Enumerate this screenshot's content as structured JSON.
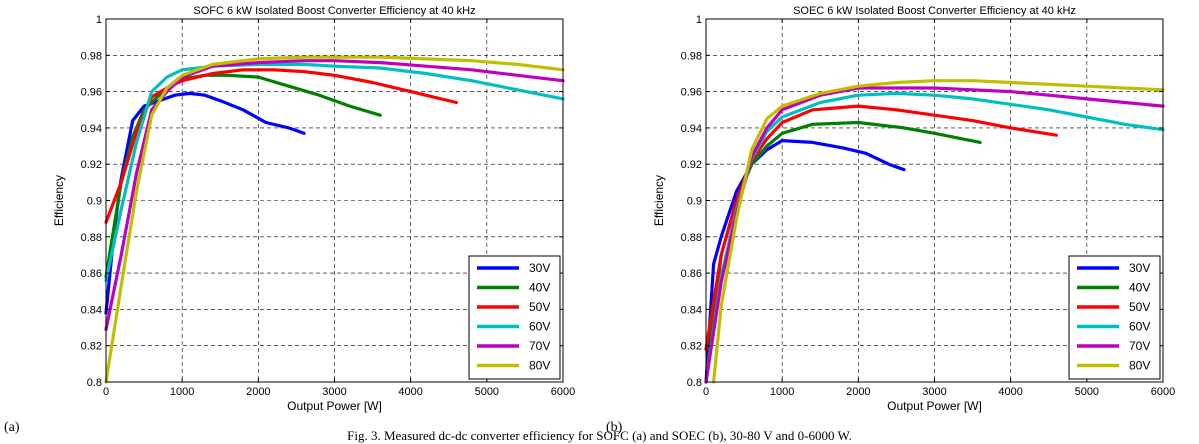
{
  "panel_labels": [
    "(a)",
    "(b)"
  ],
  "caption": "Fig. 3.    Measured dc-dc converter efficiency for SOFC (a) and SOEC (b), 30-80 V and 0-6000 W.",
  "chart_data": [
    {
      "type": "line",
      "title": "SOFC 6 kW Isolated Boost Converter Efficiency at 40 kHz",
      "xlabel": "Output Power [W]",
      "ylabel": "Efficiency",
      "xlim": [
        0,
        6000
      ],
      "ylim": [
        0.8,
        1.0
      ],
      "xticks": [
        0,
        1000,
        2000,
        3000,
        4000,
        5000,
        6000
      ],
      "yticks": [
        0.8,
        0.82,
        0.84,
        0.86,
        0.88,
        0.9,
        0.92,
        0.94,
        0.96,
        0.98,
        1
      ],
      "xtick_labels": [
        "0",
        "1000",
        "2000",
        "3000",
        "4000",
        "5000",
        "6000"
      ],
      "ytick_labels": [
        "0.8",
        "0.82",
        "0.84",
        "0.86",
        "0.88",
        "0.9",
        "0.92",
        "0.94",
        "0.96",
        "0.98",
        "1"
      ],
      "grid": true,
      "legend_position": "bottom-right",
      "series": [
        {
          "name": "30V",
          "color": "#0000ff",
          "x": [
            0,
            100,
            200,
            350,
            500,
            700,
            900,
            1100,
            1300,
            1500,
            1800,
            2100,
            2400,
            2600
          ],
          "y": [
            0.838,
            0.88,
            0.912,
            0.944,
            0.952,
            0.955,
            0.958,
            0.959,
            0.958,
            0.955,
            0.95,
            0.943,
            0.94,
            0.937
          ]
        },
        {
          "name": "40V",
          "color": "#008000",
          "x": [
            0,
            100,
            200,
            350,
            500,
            700,
            1000,
            1300,
            1600,
            2000,
            2400,
            2800,
            3200,
            3600
          ],
          "y": [
            0.858,
            0.884,
            0.91,
            0.935,
            0.95,
            0.958,
            0.967,
            0.969,
            0.969,
            0.968,
            0.963,
            0.958,
            0.952,
            0.947
          ]
        },
        {
          "name": "50V",
          "color": "#ff0000",
          "x": [
            0,
            200,
            400,
            600,
            800,
            1000,
            1400,
            1800,
            2200,
            2600,
            3000,
            3500,
            4000,
            4600
          ],
          "y": [
            0.888,
            0.91,
            0.938,
            0.957,
            0.962,
            0.966,
            0.97,
            0.972,
            0.972,
            0.971,
            0.969,
            0.965,
            0.96,
            0.954
          ]
        },
        {
          "name": "60V",
          "color": "#00bfbf",
          "x": [
            0,
            200,
            400,
            600,
            800,
            1000,
            1400,
            2000,
            2600,
            3000,
            3600,
            4200,
            4800,
            5400,
            6000
          ],
          "y": [
            0.856,
            0.895,
            0.932,
            0.96,
            0.968,
            0.972,
            0.974,
            0.975,
            0.975,
            0.974,
            0.973,
            0.97,
            0.966,
            0.961,
            0.956
          ]
        },
        {
          "name": "70V",
          "color": "#bf00bf",
          "x": [
            0,
            200,
            400,
            600,
            800,
            1000,
            1400,
            2000,
            2600,
            3000,
            3600,
            4200,
            4800,
            5400,
            6000
          ],
          "y": [
            0.829,
            0.87,
            0.915,
            0.95,
            0.96,
            0.968,
            0.974,
            0.976,
            0.977,
            0.977,
            0.976,
            0.974,
            0.972,
            0.969,
            0.966
          ]
        },
        {
          "name": "80V",
          "color": "#bfbf00",
          "x": [
            0,
            200,
            400,
            600,
            800,
            1000,
            1400,
            2000,
            2600,
            3000,
            3600,
            4200,
            4800,
            5400,
            6000
          ],
          "y": [
            0.8,
            0.853,
            0.905,
            0.947,
            0.962,
            0.969,
            0.975,
            0.978,
            0.979,
            0.979,
            0.979,
            0.978,
            0.977,
            0.975,
            0.972
          ]
        }
      ]
    },
    {
      "type": "line",
      "title": "SOEC 6 kW Isolated Boost Converter Efficiency at 40 kHz",
      "xlabel": "Output Power [W]",
      "ylabel": "Efficiency",
      "xlim": [
        0,
        6000
      ],
      "ylim": [
        0.8,
        1.0
      ],
      "xticks": [
        0,
        1000,
        2000,
        3000,
        4000,
        5000,
        6000
      ],
      "yticks": [
        0.8,
        0.82,
        0.84,
        0.86,
        0.88,
        0.9,
        0.92,
        0.94,
        0.96,
        0.98,
        1
      ],
      "xtick_labels": [
        "0",
        "1000",
        "2000",
        "3000",
        "4000",
        "5000",
        "6000"
      ],
      "ytick_labels": [
        "0.8",
        "0.82",
        "0.84",
        "0.86",
        "0.88",
        "0.9",
        "0.92",
        "0.94",
        "0.96",
        "0.98",
        "1"
      ],
      "grid": true,
      "legend_position": "bottom-right",
      "series": [
        {
          "name": "30V",
          "color": "#0000ff",
          "x": [
            0,
            100,
            200,
            400,
            600,
            800,
            1000,
            1400,
            1800,
            2100,
            2400,
            2600
          ],
          "y": [
            0.8,
            0.865,
            0.88,
            0.905,
            0.92,
            0.928,
            0.933,
            0.932,
            0.929,
            0.926,
            0.92,
            0.917
          ]
        },
        {
          "name": "40V",
          "color": "#008000",
          "x": [
            0,
            200,
            400,
            600,
            800,
            1000,
            1400,
            2000,
            2600,
            3000,
            3600
          ],
          "y": [
            0.8,
            0.87,
            0.9,
            0.92,
            0.93,
            0.937,
            0.942,
            0.943,
            0.94,
            0.937,
            0.932
          ]
        },
        {
          "name": "50V",
          "color": "#ff0000",
          "x": [
            0,
            200,
            400,
            600,
            800,
            1000,
            1400,
            2000,
            2500,
            3000,
            3500,
            4000,
            4600
          ],
          "y": [
            0.818,
            0.87,
            0.9,
            0.922,
            0.934,
            0.943,
            0.95,
            0.952,
            0.95,
            0.947,
            0.944,
            0.94,
            0.936
          ]
        },
        {
          "name": "60V",
          "color": "#00bfbf",
          "x": [
            0,
            200,
            400,
            600,
            800,
            1000,
            1500,
            2000,
            2500,
            3000,
            3500,
            4000,
            4500,
            5000,
            5500,
            6000
          ],
          "y": [
            0.8,
            0.858,
            0.895,
            0.923,
            0.938,
            0.946,
            0.954,
            0.958,
            0.959,
            0.958,
            0.956,
            0.953,
            0.95,
            0.946,
            0.942,
            0.939
          ]
        },
        {
          "name": "70V",
          "color": "#bf00bf",
          "x": [
            0,
            200,
            400,
            600,
            800,
            1000,
            1500,
            2000,
            2500,
            3000,
            3500,
            4000,
            4500,
            5000,
            5500,
            6000
          ],
          "y": [
            0.8,
            0.855,
            0.893,
            0.924,
            0.94,
            0.95,
            0.958,
            0.962,
            0.962,
            0.962,
            0.961,
            0.96,
            0.958,
            0.956,
            0.954,
            0.952
          ]
        },
        {
          "name": "80V",
          "color": "#bfbf00",
          "x": [
            100,
            200,
            400,
            600,
            800,
            1000,
            1500,
            2000,
            2500,
            3000,
            3500,
            4000,
            4500,
            5000,
            5500,
            6000
          ],
          "y": [
            0.8,
            0.842,
            0.89,
            0.928,
            0.945,
            0.952,
            0.959,
            0.963,
            0.965,
            0.966,
            0.966,
            0.965,
            0.964,
            0.963,
            0.962,
            0.961
          ]
        }
      ]
    }
  ]
}
